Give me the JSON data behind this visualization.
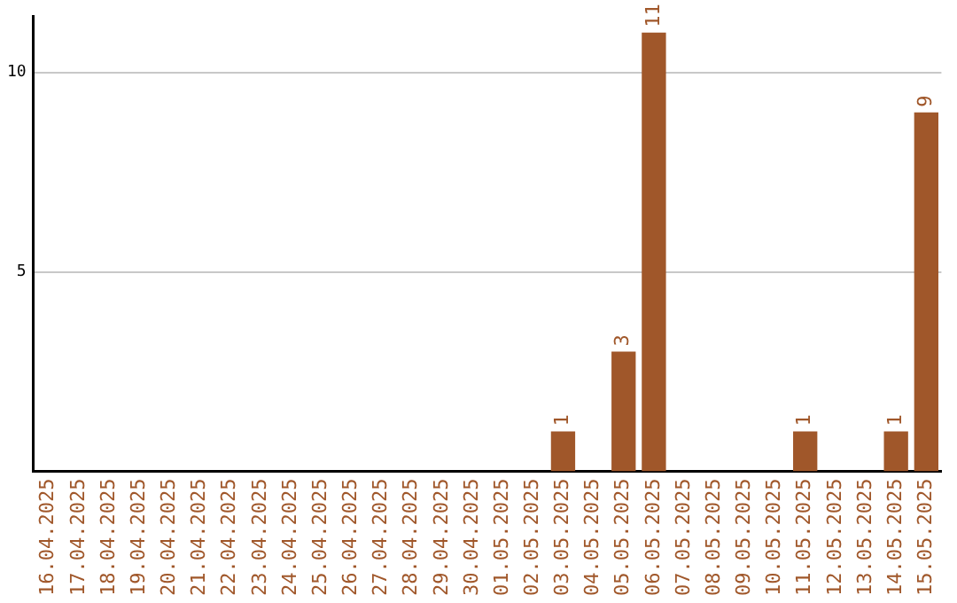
{
  "chart_data": {
    "type": "bar",
    "categories": [
      "16.04.2025",
      "17.04.2025",
      "18.04.2025",
      "19.04.2025",
      "20.04.2025",
      "21.04.2025",
      "22.04.2025",
      "23.04.2025",
      "24.04.2025",
      "25.04.2025",
      "26.04.2025",
      "27.04.2025",
      "28.04.2025",
      "29.04.2025",
      "30.04.2025",
      "01.05.2025",
      "02.05.2025",
      "03.05.2025",
      "04.05.2025",
      "05.05.2025",
      "06.05.2025",
      "07.05.2025",
      "08.05.2025",
      "09.05.2025",
      "10.05.2025",
      "11.05.2025",
      "12.05.2025",
      "13.05.2025",
      "14.05.2025",
      "15.05.2025"
    ],
    "values": [
      0,
      0,
      0,
      0,
      0,
      0,
      0,
      0,
      0,
      0,
      0,
      0,
      0,
      0,
      0,
      0,
      0,
      1,
      0,
      3,
      11,
      0,
      0,
      0,
      0,
      1,
      0,
      0,
      1,
      9
    ],
    "value_labels": [
      null,
      null,
      null,
      null,
      null,
      null,
      null,
      null,
      null,
      null,
      null,
      null,
      null,
      null,
      null,
      null,
      null,
      "1",
      null,
      "3",
      "11",
      null,
      null,
      null,
      null,
      "1",
      null,
      null,
      "1",
      "9"
    ],
    "color": "#a0572a",
    "ylim": [
      0,
      11.4
    ],
    "yticks": [
      5,
      10
    ],
    "grid": "y",
    "legend": false
  }
}
